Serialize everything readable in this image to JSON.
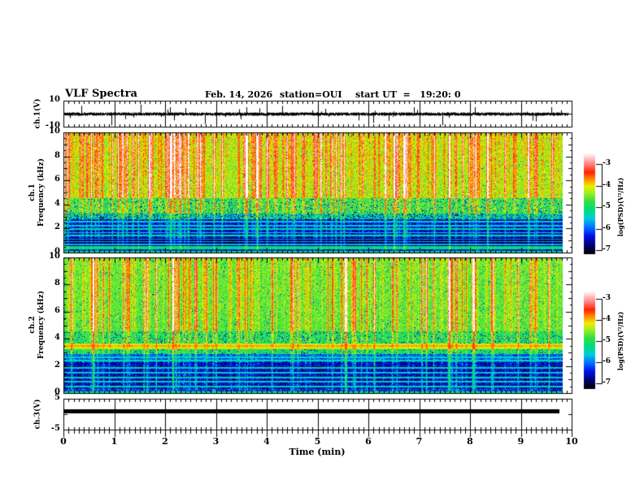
{
  "header": {
    "title": "VLF Spectra",
    "date": "Feb. 14, 2026",
    "station": "station=OUI",
    "start_ut": "start UT  =   19:20: 0"
  },
  "xaxis": {
    "label": "Time (min)",
    "ticks": [
      "0",
      "1",
      "2",
      "3",
      "4",
      "5",
      "6",
      "7",
      "8",
      "9",
      "10"
    ],
    "min": 0,
    "max": 10
  },
  "panels": {
    "ch1_wave": {
      "ylabel": "ch.1(V)",
      "yticks": [
        "10",
        "-10"
      ],
      "ylim": [
        -10,
        10
      ]
    },
    "spec1": {
      "ylabel_line1": "ch.1",
      "ylabel_line2": "Frequency (kHz)",
      "yticks": [
        "10",
        "8",
        "6",
        "4",
        "2",
        "0"
      ],
      "ylim": [
        0,
        10
      ]
    },
    "spec2": {
      "ylabel_line1": "ch.2",
      "ylabel_line2": "Frequency (kHz)",
      "yticks": [
        "10",
        "8",
        "6",
        "4",
        "2",
        "0"
      ],
      "ylim": [
        0,
        10
      ]
    },
    "ch3_wave": {
      "ylabel": "ch.3(V)",
      "yticks": [
        "5",
        "-5"
      ],
      "ylim": [
        -5,
        5
      ]
    }
  },
  "colorbars": [
    {
      "label": "log(PSD)(V²/Hz)",
      "ticks": [
        "-3",
        "-4",
        "-5",
        "-6",
        "-7"
      ],
      "range": [
        -7,
        -3
      ]
    },
    {
      "label": "log(PSD)(V²/Hz)",
      "ticks": [
        "-3",
        "-4",
        "-5",
        "-6",
        "-7"
      ],
      "range": [
        -7,
        -3
      ]
    }
  ],
  "colormap": {
    "stops": [
      [
        0.0,
        "#000000"
      ],
      [
        0.09,
        "#000077"
      ],
      [
        0.18,
        "#0011ee"
      ],
      [
        0.27,
        "#0077ff"
      ],
      [
        0.35,
        "#00ccdd"
      ],
      [
        0.44,
        "#00dd77"
      ],
      [
        0.52,
        "#33dd44"
      ],
      [
        0.6,
        "#99ee22"
      ],
      [
        0.67,
        "#eeee00"
      ],
      [
        0.74,
        "#ff8800"
      ],
      [
        0.81,
        "#ff2200"
      ],
      [
        0.88,
        "#ff7777"
      ],
      [
        0.94,
        "#ffbbbb"
      ],
      [
        1.0,
        "#ffffff"
      ]
    ]
  },
  "chart_data": [
    {
      "type": "line",
      "panel": "ch1-waveform",
      "ylabel": "ch.1(V)",
      "ylim": [
        -10,
        10
      ],
      "xlim": [
        0,
        10
      ],
      "baseline_V": 0,
      "noise_peak_V": 1.5,
      "large_spikes": [
        {
          "t": 0.35,
          "v": 6
        },
        {
          "t": 0.95,
          "v": -9
        },
        {
          "t": 1.52,
          "v": 7
        },
        {
          "t": 2.1,
          "v": 5
        },
        {
          "t": 2.78,
          "v": -8
        },
        {
          "t": 3.6,
          "v": 5
        },
        {
          "t": 4.3,
          "v": 6
        },
        {
          "t": 5.0,
          "v": 7
        },
        {
          "t": 6.1,
          "v": -7
        },
        {
          "t": 6.9,
          "v": 5
        },
        {
          "t": 7.45,
          "v": -9
        },
        {
          "t": 8.1,
          "v": 5
        },
        {
          "t": 9.3,
          "v": -6
        },
        {
          "t": 9.6,
          "v": 5
        }
      ],
      "description": "dense noise trace centered at 0 V with intermittent impulsive spikes"
    },
    {
      "type": "heatmap",
      "panel": "ch1-spectrogram",
      "ylabel": "ch.1 Frequency (kHz)",
      "ylim": [
        0,
        10
      ],
      "xlim": [
        0,
        10
      ],
      "value_scale": {
        "label": "log(PSD)(V²/Hz)",
        "min": -7,
        "max": -3
      },
      "bands": [
        {
          "f": [
            4.6,
            10.01
          ],
          "level": -4.6,
          "noise": 0.38,
          "streak": 1.7,
          "grad": 0.15,
          "speckle": 0.02
        },
        {
          "f": [
            3.3,
            4.6
          ],
          "level": -4.95,
          "noise": 0.4,
          "streak": 1.0,
          "speckle": 0.12
        },
        {
          "f": [
            2.8,
            3.3
          ],
          "level": -5.5,
          "noise": 0.5,
          "streak": 0.8,
          "speckle": 0.15
        },
        {
          "f": [
            1.25,
            2.8
          ],
          "level": -6.45,
          "noise": 0.4,
          "streak": 0.9,
          "lines": [
            [
              1.45,
              -5.5
            ],
            [
              1.7,
              -5.55
            ],
            [
              2.0,
              -5.5
            ],
            [
              2.3,
              -5.6
            ],
            [
              2.6,
              -5.55
            ]
          ]
        },
        {
          "f": [
            0.55,
            1.25
          ],
          "level": -6.8,
          "noise": 0.25,
          "streak": 0.75,
          "lines": [
            [
              0.7,
              -5.7
            ],
            [
              0.95,
              -5.75
            ],
            [
              1.15,
              -5.8
            ]
          ]
        },
        {
          "f": [
            0.28,
            0.55
          ],
          "level": -5.4,
          "noise": 0.35,
          "streak": 0.5
        },
        {
          "f": [
            0,
            0.28
          ],
          "level": -6.4,
          "noise": 0.5,
          "streak": 0.5,
          "lines": [
            [
              0.1,
              -5.4
            ]
          ]
        }
      ],
      "description": "yellow-green above ~4.5 kHz with red vertical sferic streaks; dark blue band below ~3 kHz crossed by cyan horizontal lines"
    },
    {
      "type": "heatmap",
      "panel": "ch2-spectrogram",
      "ylabel": "ch.2 Frequency (kHz)",
      "ylim": [
        0,
        10
      ],
      "xlim": [
        0,
        10
      ],
      "value_scale": {
        "label": "log(PSD)(V²/Hz)",
        "min": -7,
        "max": -3
      },
      "bands": [
        {
          "f": [
            4.6,
            10.01
          ],
          "level": -4.85,
          "noise": 0.32,
          "streak": 1.55,
          "grad": 0.1,
          "speckle": 0.03
        },
        {
          "f": [
            3.7,
            4.6
          ],
          "level": -5.05,
          "noise": 0.35,
          "streak": 0.95,
          "speckle": 0.1
        },
        {
          "f": [
            3.3,
            3.7
          ],
          "level": -4.45,
          "noise": 0.2,
          "streak": 0.5,
          "lines": [
            [
              3.5,
              -4.15
            ]
          ]
        },
        {
          "f": [
            2.9,
            3.3
          ],
          "level": -5.15,
          "noise": 0.3,
          "streak": 0.7,
          "speckle": 0.08
        },
        {
          "f": [
            2.3,
            2.9
          ],
          "level": -6.1,
          "noise": 0.45,
          "streak": 0.85,
          "lines": [
            [
              2.45,
              -5.5
            ],
            [
              2.7,
              -5.55
            ]
          ]
        },
        {
          "f": [
            0.35,
            2.3
          ],
          "level": -6.5,
          "noise": 0.45,
          "streak": 0.9,
          "lines": [
            [
              0.5,
              -5.5
            ],
            [
              0.85,
              -5.55
            ],
            [
              1.2,
              -5.5
            ],
            [
              1.55,
              -5.6
            ],
            [
              1.9,
              -5.55
            ]
          ]
        },
        {
          "f": [
            0,
            0.35
          ],
          "level": -6.2,
          "noise": 0.5,
          "streak": 0.55,
          "lines": [
            [
              0.1,
              -5.35
            ]
          ]
        }
      ],
      "description": "green above ~4.5 kHz with red streaks; bright yellow horizontal band near 3.5 kHz; blue band below ~3 kHz with cyan lines"
    },
    {
      "type": "line",
      "panel": "ch3-waveform",
      "ylabel": "ch.3(V)",
      "ylim": [
        -5,
        5
      ],
      "xlim": [
        0,
        10
      ],
      "constant_value_V": 1,
      "description": "flat thick trace at ~+1 V extending to about 9.8 min"
    }
  ]
}
